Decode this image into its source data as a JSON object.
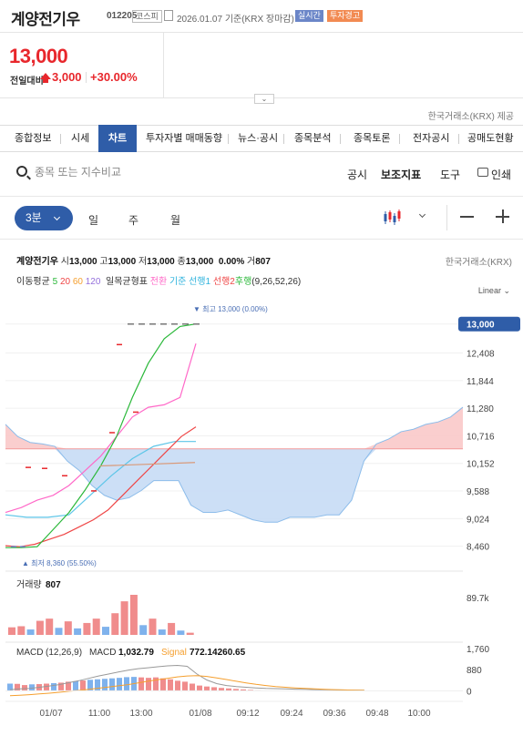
{
  "header": {
    "stock_name": "계양전기우",
    "stock_code": "012205",
    "market": "코스피",
    "date_text": "2026.01.07 기준(KRX 장마감)",
    "realtime_badge": "실시간",
    "warning_badge": "투자경고"
  },
  "price": {
    "current": "13,000",
    "change_label": "전일대비",
    "change_value": "3,000",
    "change_percent": "+30.00%"
  },
  "provider": "한국거래소(KRX) 제공",
  "tabs": [
    {
      "label": "종합정보"
    },
    {
      "label": "시세"
    },
    {
      "label": "차트"
    },
    {
      "label": "투자자별 매매동향"
    },
    {
      "label": "뉴스·공시"
    },
    {
      "label": "종목분석"
    },
    {
      "label": "종목토론"
    },
    {
      "label": "전자공시"
    },
    {
      "label": "공매도현황"
    }
  ],
  "toolbar": {
    "search_placeholder": "종목 또는 지수비교",
    "disclosure": "공시",
    "indicators": "보조지표",
    "tools": "도구",
    "print": "인쇄"
  },
  "period": {
    "selected": "3분",
    "options": [
      "일",
      "주",
      "월"
    ]
  },
  "info": {
    "name": "계양전기우",
    "open_label": "시",
    "open": "13,000",
    "high_label": "고",
    "high": "13,000",
    "low_label": "저",
    "low": "13,000",
    "close_label": "종",
    "close": "13,000",
    "pct": "0.00%",
    "volume_label": "거",
    "volume": "807",
    "exchange": "한국거래소(KRX)"
  },
  "ma_legend": {
    "label": "이동평균",
    "p5": "5",
    "p20": "20",
    "p60": "60",
    "p120": "120",
    "ichimoku": "일목균형표",
    "conversion": "전환",
    "base": "기준",
    "lead1": "선행1",
    "lead2": "선행2",
    "lagging": "후행",
    "params": "(9,26,52,26)"
  },
  "colors": {
    "up": "#e8272c",
    "accent": "#2f5da8",
    "ma5": "#2bb83a",
    "ma20": "#ef4646",
    "ma60": "#f59f2e",
    "ma120": "#9470dc",
    "conversion": "#ff69c8",
    "base": "#5dc6e8",
    "lagging": "#2bb83a",
    "cloud_up": "#f9c9c9",
    "cloud_down": "#c7dcf5",
    "vol_up": "#f08c8c",
    "vol_down": "#7fb2ec"
  },
  "chart_data": [
    {
      "type": "line",
      "title": "",
      "scale_label": "Linear",
      "y_ticks": [
        "13,000",
        "12,408",
        "11,844",
        "11,280",
        "10,716",
        "10,152",
        "9,588",
        "9,024",
        "8,460"
      ],
      "ylim": [
        8360,
        13200
      ],
      "current_price_tag": "13,000",
      "high_annotation": "최고 13,000 (0.00%)",
      "low_annotation": "최저 8,360 (55.50%)",
      "x_ticks": [
        "01/07",
        "11:00",
        "13:00",
        "01/08",
        "09:12",
        "09:24",
        "09:36",
        "09:48",
        "10:00"
      ],
      "ma5": [
        8450,
        8460,
        8700,
        8800,
        9050,
        9500,
        10100,
        10600,
        11200,
        11900,
        12500,
        12900,
        13000,
        13000,
        13000
      ],
      "ma20": [
        8470,
        8450,
        8500,
        8600,
        8700,
        8850,
        9000,
        9200,
        9500,
        9800,
        10100,
        10400,
        10700,
        10900
      ],
      "conversion": [
        9150,
        9250,
        9400,
        9500,
        9700,
        10000,
        10300,
        10700,
        11100,
        11300,
        11350,
        11500,
        12600
      ],
      "base": [
        9100,
        9050,
        9050,
        9100,
        9500,
        9900,
        10250,
        10500,
        10600,
        10600
      ],
      "lagging": [
        8430,
        8430,
        8450,
        8800,
        9150,
        9600,
        10100,
        10700,
        11500,
        12200,
        12700,
        12950,
        13000
      ],
      "cloud_lead1": [
        10950,
        10700,
        10580,
        10550,
        10500,
        10200,
        10000,
        9700,
        9500,
        9400,
        9450,
        9600,
        9800,
        9800,
        9800,
        9300,
        9150,
        9150,
        9200,
        9100,
        9000,
        8950,
        8950,
        9050,
        9050,
        9050,
        9100,
        9100,
        9400,
        10200,
        10550,
        10650,
        10800,
        10850,
        10950,
        11000,
        11100,
        11300
      ],
      "cloud_lead2": 10450
    },
    {
      "type": "bar",
      "title": "거래량",
      "value_label": "807",
      "y_ticks": [
        "89.7k"
      ],
      "up": [
        1,
        1,
        0,
        1,
        1,
        0,
        1,
        0,
        1,
        1,
        0,
        1,
        1,
        1,
        0,
        1,
        0,
        1,
        0,
        1
      ],
      "values": [
        14,
        16,
        10,
        26,
        30,
        13,
        25,
        12,
        22,
        30,
        15,
        40,
        62,
        74,
        18,
        30,
        10,
        22,
        8,
        4
      ]
    },
    {
      "type": "line",
      "title": "MACD",
      "params": "(12,26,9)",
      "macd_label": "MACD",
      "macd_value": "1,032.79",
      "signal_label": "Signal",
      "signal_value": "772.14260.65",
      "y_ticks": [
        "1,760",
        "880",
        "0"
      ],
      "ylim": [
        -250,
        1760
      ],
      "histogram": [
        300,
        290,
        240,
        270,
        280,
        300,
        320,
        340,
        380,
        400,
        430,
        460,
        480,
        500,
        520,
        540,
        570,
        580,
        560,
        540,
        560,
        520,
        480,
        420,
        380,
        300,
        220,
        180,
        150,
        120,
        100,
        80,
        60,
        40,
        20,
        10,
        5
      ],
      "macd": [
        50,
        80,
        100,
        150,
        200,
        260,
        340,
        420,
        520,
        620,
        700,
        780,
        860,
        920,
        960,
        1000,
        1040,
        1060,
        1020,
        700,
        450,
        300,
        220,
        180,
        150,
        120,
        100,
        90,
        80,
        70,
        60,
        50,
        45,
        40,
        35,
        30,
        25
      ],
      "signal": [
        -200,
        -180,
        -160,
        -130,
        -100,
        -60,
        -20,
        20,
        60,
        110,
        160,
        210,
        260,
        330,
        400,
        460,
        520,
        580,
        620,
        630,
        600,
        540,
        470,
        400,
        330,
        270,
        220,
        180,
        150,
        120,
        100,
        80,
        60,
        50,
        40,
        30,
        25
      ]
    }
  ]
}
